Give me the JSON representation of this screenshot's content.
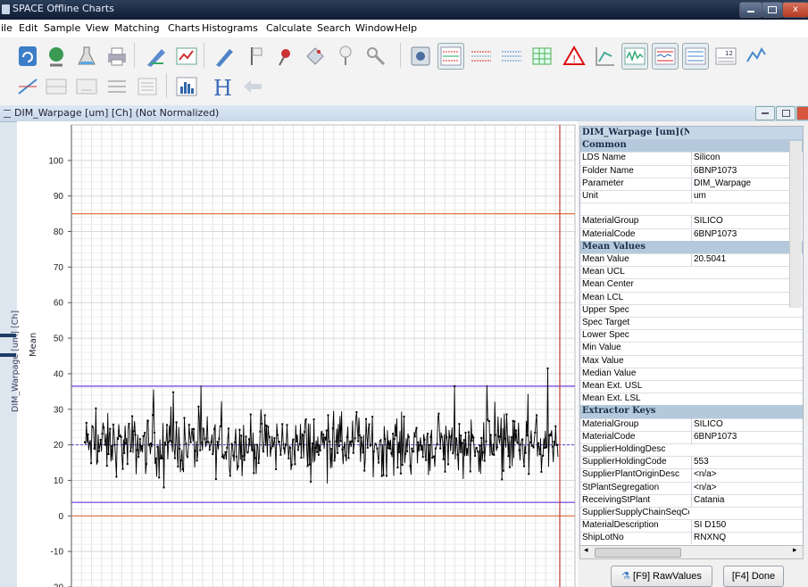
{
  "window": {
    "title": "SPACE Offline Charts"
  },
  "menu": [
    "ile",
    "Edit",
    "Sample",
    "View",
    "Matching",
    "Charts",
    "Histograms",
    "Calculate",
    "Search",
    "Window",
    "Help"
  ],
  "toolbar_row1": [
    "refresh-icon",
    "globe-icon",
    "flask-icon",
    "printer-icon",
    "pen-chart-icon",
    "table-chart-icon",
    "pencil-icon",
    "flag-icon",
    "pin-icon",
    "tag-icon",
    "location-pin-icon",
    "key-icon",
    "data-tool-icon",
    "control-chart-red-icon",
    "control-chart-dashed-icon",
    "control-chart-blue-icon",
    "grid-green-icon",
    "warning-icon",
    "scatter-icon",
    "waveform-icon",
    "control-chart-active-icon",
    "control-chart-lines-icon",
    "table-12-icon",
    "trend-icon"
  ],
  "toolbar_row2": [
    "line-tool-icon",
    "hline-tool-icon",
    "range-tool-icon",
    "check-list-icon",
    "list-icon",
    "histogram-icon",
    "h-icon",
    "back-arrow-icon"
  ],
  "frame": {
    "title": "DIM_Warpage [um] [Ch] (Not Normalized)"
  },
  "chart_data": {
    "type": "line",
    "ylabel_outer": "DIM_Warpage [um] [Ch]",
    "ylabel": "Mean",
    "ylim": [
      -20,
      110
    ],
    "yticks": [
      100,
      90,
      80,
      70,
      60,
      50,
      40,
      30,
      20,
      10,
      0,
      -10,
      -20
    ],
    "lines": {
      "upper_spec": 85,
      "lower_spec": 0,
      "ucl": 36.5,
      "center": 20.0,
      "lcl": 3.8
    },
    "n_points": 600,
    "mean": 20.0,
    "max": 41.5,
    "min": 8.0
  },
  "props": {
    "title": "DIM_Warpage [um](Not",
    "sections": [
      {
        "header": "Common",
        "rows": [
          [
            "LDS Name",
            "Silicon"
          ],
          [
            "Folder Name",
            "6BNP1073"
          ],
          [
            "Parameter",
            "DIM_Warpage"
          ],
          [
            "Unit",
            "um"
          ],
          [
            "",
            ""
          ],
          [
            "MaterialGroup",
            "SILICO"
          ],
          [
            "MaterialCode",
            "6BNP1073"
          ]
        ]
      },
      {
        "header": "Mean Values",
        "rows": [
          [
            "Mean Value",
            "20.5041"
          ],
          [
            "Mean UCL",
            ""
          ],
          [
            "Mean Center",
            ""
          ],
          [
            "Mean LCL",
            ""
          ],
          [
            "Upper Spec",
            ""
          ],
          [
            "Spec Target",
            ""
          ],
          [
            "Lower Spec",
            ""
          ],
          [
            "Min Value",
            ""
          ],
          [
            "Max Value",
            ""
          ],
          [
            "Median Value",
            ""
          ],
          [
            "Mean Ext. USL",
            ""
          ],
          [
            "Mean Ext. LSL",
            ""
          ]
        ]
      },
      {
        "header": "Extractor Keys",
        "rows": [
          [
            "MaterialGroup",
            "SILICO"
          ],
          [
            "MaterialCode",
            "6BNP1073"
          ],
          [
            "SupplierHoldingDesc",
            ""
          ],
          [
            "SupplierHoldingCode",
            "553"
          ],
          [
            "SupplierPlantOriginDesc",
            "<n/a>"
          ],
          [
            "StPlantSegregation",
            "<n/a>"
          ],
          [
            "ReceivingStPlant",
            "Catania"
          ],
          [
            "SupplierSupplyChainSeqCode",
            ""
          ],
          [
            "MaterialDescription",
            "SI D150"
          ],
          [
            "ShipLotNo",
            "RNXNQ"
          ]
        ]
      }
    ]
  },
  "buttons": {
    "raw": "[F9] RawValues",
    "done": "[F4] Done"
  }
}
